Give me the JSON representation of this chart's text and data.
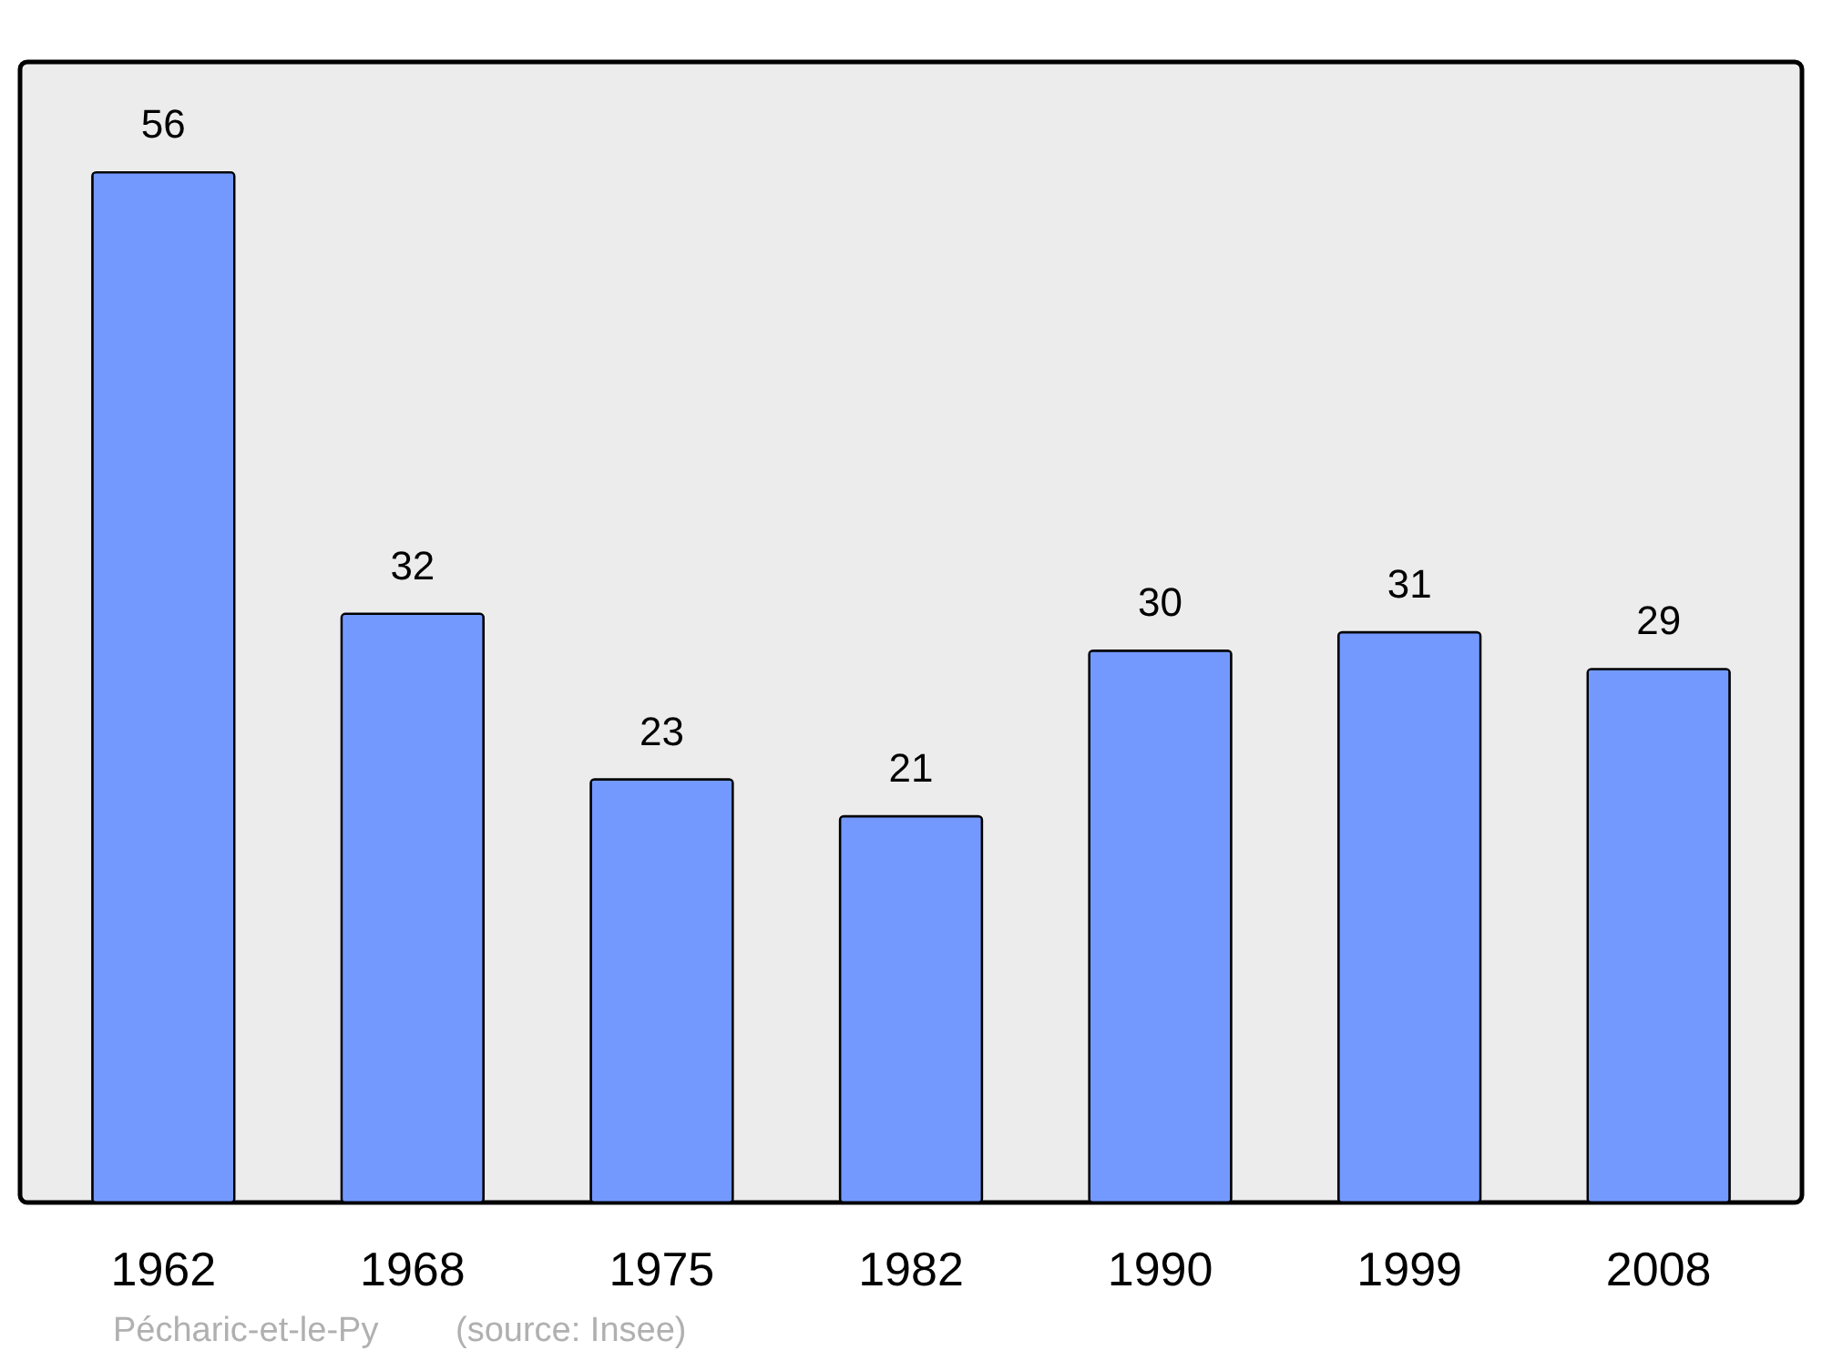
{
  "chart_data": {
    "type": "bar",
    "categories": [
      "1962",
      "1968",
      "1975",
      "1982",
      "1990",
      "1999",
      "2008"
    ],
    "values": [
      56,
      32,
      23,
      21,
      30,
      31,
      29
    ],
    "color": "#7399ff",
    "ylim": [
      0,
      62
    ],
    "data_labels": true,
    "tick_labels": "x",
    "annotations": [
      "Pécharic-et-le-Py",
      "(source: Insee)"
    ]
  }
}
